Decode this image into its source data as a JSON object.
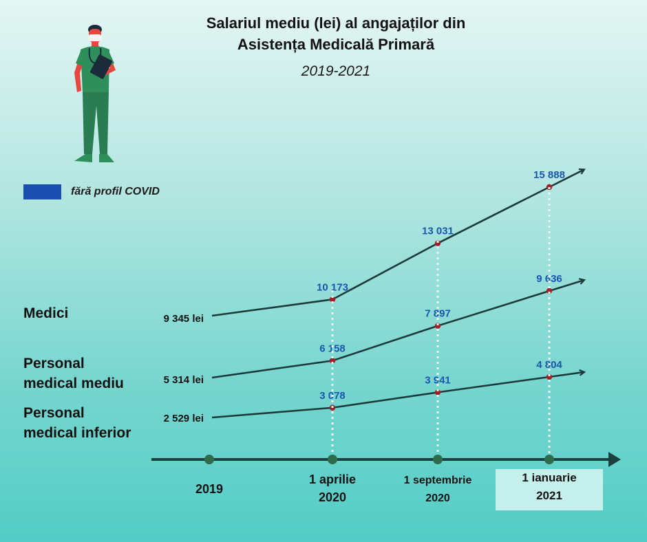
{
  "title_lines": [
    "Salariul mediu (lei) al angajaților din",
    "Asistența Medicală Primară"
  ],
  "subtitle": "2019-2021",
  "legend_label": "fără profil COVID",
  "colors": {
    "line": "#1c3a3a",
    "point": "#a31f25",
    "label": "#1a56b0",
    "axis": "#18403e",
    "axis_dot": "#2d6b4b",
    "legend": "#1a4fb0"
  },
  "row_labels": [
    [
      "Medici"
    ],
    [
      "Personal",
      "medical mediu"
    ],
    [
      "Personal",
      "medical inferior"
    ]
  ],
  "chart_data": {
    "type": "line",
    "title": "Salariul mediu (lei) al angajaților din Asistența Medicală Primară",
    "subtitle": "2019-2021",
    "categories": [
      "2019",
      "1 aprilie 2020",
      "1 septembrie 2020",
      "1 ianuarie 2021"
    ],
    "x_tick_labels": [
      [
        "2019"
      ],
      [
        "1 aprilie",
        "2020"
      ],
      [
        "1 septembrie",
        "2020"
      ],
      [
        "1 ianuarie",
        "2021"
      ]
    ],
    "series": [
      {
        "name": "Medici",
        "values": [
          9345,
          10173,
          13031,
          15888
        ],
        "labels": [
          "9 345 lei",
          "10 173",
          "13 031",
          "15 888"
        ]
      },
      {
        "name": "Personal medical mediu",
        "values": [
          5314,
          6158,
          7897,
          9636
        ],
        "labels": [
          "5 314 lei",
          "6 158",
          "7 897",
          "9 636"
        ]
      },
      {
        "name": "Personal medical inferior",
        "values": [
          2529,
          3078,
          3941,
          4804
        ],
        "labels": [
          "2 529 lei",
          "3 078",
          "3 941",
          "4 804"
        ]
      }
    ],
    "legend": [
      {
        "label": "fără profil COVID",
        "color": "#1a4fb0"
      }
    ],
    "grid": false
  }
}
